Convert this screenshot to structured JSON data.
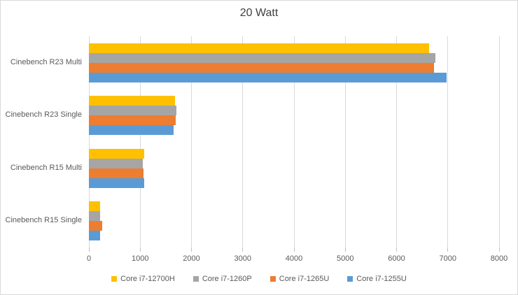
{
  "chart_data": {
    "type": "bar",
    "orientation": "horizontal",
    "title": "20 Watt",
    "categories": [
      "Cinebench R23 Multi",
      "Cinebench R23 Single",
      "Cinebench R15 Multi",
      "Cinebench R15 Single"
    ],
    "series": [
      {
        "name": "Core i7-12700H",
        "color": "#FFC000",
        "values": [
          6630,
          1680,
          1075,
          225
        ]
      },
      {
        "name": "Core i7-1260P",
        "color": "#A5A5A5",
        "values": [
          6760,
          1700,
          1050,
          225
        ]
      },
      {
        "name": "Core i7-1265U",
        "color": "#ED7D31",
        "values": [
          6730,
          1690,
          1060,
          265
        ]
      },
      {
        "name": "Core i7-1255U",
        "color": "#5B9BD5",
        "values": [
          6980,
          1655,
          1080,
          225
        ]
      }
    ],
    "xlim": [
      0,
      8000
    ],
    "x_ticks": [
      0,
      1000,
      2000,
      3000,
      4000,
      5000,
      6000,
      7000,
      8000
    ],
    "grid": "vertical",
    "legend_position": "bottom",
    "grid_color": "#D9D9D9",
    "text_color": "#595959",
    "title_color": "#404040"
  }
}
